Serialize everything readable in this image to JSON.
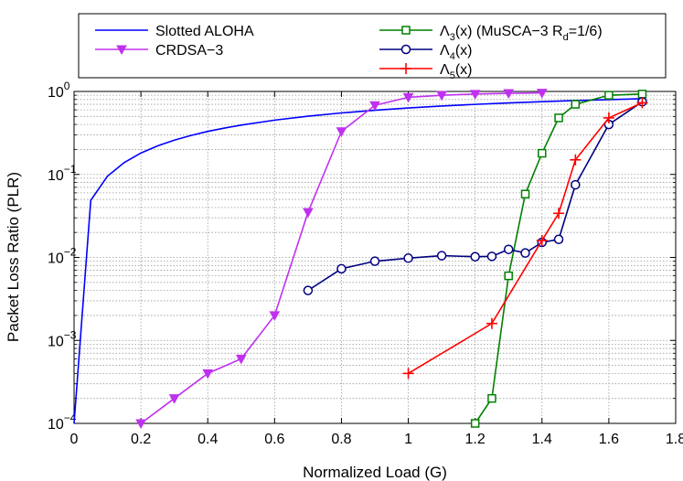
{
  "chart_data": {
    "type": "line",
    "xlabel": "Normalized Load (G)",
    "ylabel": "Packet Loss Ratio (PLR)",
    "xlim": [
      0,
      1.8
    ],
    "ylim": [
      0.0001,
      1
    ],
    "yscale": "log",
    "grid": true,
    "legend_position": "top",
    "x_ticks": [
      0,
      0.2,
      0.4,
      0.6,
      0.8,
      1,
      1.2,
      1.4,
      1.6,
      1.8
    ],
    "x_tick_labels": [
      "0",
      "0.2",
      "0.4",
      "0.6",
      "0.8",
      "1",
      "1.2",
      "1.4",
      "1.6",
      "1.8"
    ],
    "y_ticks": [
      {
        "value": 0.0001,
        "base": "10",
        "exp": "−4"
      },
      {
        "value": 0.001,
        "base": "10",
        "exp": "−3"
      },
      {
        "value": 0.01,
        "base": "10",
        "exp": "−2"
      },
      {
        "value": 0.1,
        "base": "10",
        "exp": "−1"
      },
      {
        "value": 1,
        "base": "10",
        "exp": "0"
      }
    ],
    "legend": [
      {
        "main": "Slotted ALOHA"
      },
      {
        "main": "CRDSA−3"
      },
      {
        "main": "Λ",
        "sub": "3",
        "rest": "(x) (MuSCA−3 R",
        "sub2": "d",
        "rest2": "=1/6)"
      },
      {
        "main": "Λ",
        "sub": "4",
        "rest": "(x)"
      },
      {
        "main": "Λ",
        "sub": "5",
        "rest": "(x)"
      }
    ],
    "series": [
      {
        "name": "Slotted ALOHA",
        "color": "#0000ff",
        "marker": "none",
        "x": [
          0.0,
          0.05,
          0.1,
          0.15,
          0.2,
          0.25,
          0.3,
          0.35,
          0.4,
          0.45,
          0.5,
          0.6,
          0.7,
          0.8,
          0.9,
          1.0,
          1.1,
          1.2,
          1.3,
          1.4,
          1.5,
          1.6,
          1.7
        ],
        "y": [
          0.0001,
          0.0488,
          0.0952,
          0.139,
          0.181,
          0.221,
          0.259,
          0.295,
          0.33,
          0.362,
          0.393,
          0.451,
          0.503,
          0.551,
          0.593,
          0.632,
          0.667,
          0.699,
          0.727,
          0.753,
          0.777,
          0.798,
          0.817
        ]
      },
      {
        "name": "CRDSA−3",
        "color": "#c030f0",
        "marker": "triangle-down",
        "x": [
          0.2,
          0.3,
          0.4,
          0.5,
          0.6,
          0.7,
          0.8,
          0.9,
          1.0,
          1.1,
          1.2,
          1.3,
          1.4
        ],
        "y": [
          0.0001,
          0.0002,
          0.0004,
          0.0006,
          0.002,
          0.035,
          0.33,
          0.68,
          0.85,
          0.9,
          0.93,
          0.95,
          0.96
        ]
      },
      {
        "name": "Λ3(x) (MuSCA−3 Rd=1/6)",
        "color": "#008000",
        "marker": "square",
        "x": [
          1.2,
          1.25,
          1.3,
          1.35,
          1.4,
          1.45,
          1.5,
          1.6,
          1.7
        ],
        "y": [
          0.0001,
          0.0002,
          0.006,
          0.058,
          0.18,
          0.48,
          0.7,
          0.9,
          0.93
        ]
      },
      {
        "name": "Λ4(x)",
        "color": "#000080",
        "marker": "circle",
        "x": [
          0.7,
          0.8,
          0.9,
          1.0,
          1.1,
          1.2,
          1.25,
          1.3,
          1.35,
          1.4,
          1.45,
          1.5,
          1.6,
          1.7
        ],
        "y": [
          0.004,
          0.0073,
          0.009,
          0.0098,
          0.0105,
          0.0102,
          0.0103,
          0.0125,
          0.0113,
          0.0152,
          0.0165,
          0.075,
          0.4,
          0.75
        ]
      },
      {
        "name": "Λ5(x)",
        "color": "#ff0000",
        "marker": "plus",
        "x": [
          1.0,
          1.25,
          1.4,
          1.45,
          1.5,
          1.6,
          1.7
        ],
        "y": [
          0.0004,
          0.0016,
          0.016,
          0.034,
          0.15,
          0.48,
          0.73
        ]
      }
    ]
  }
}
